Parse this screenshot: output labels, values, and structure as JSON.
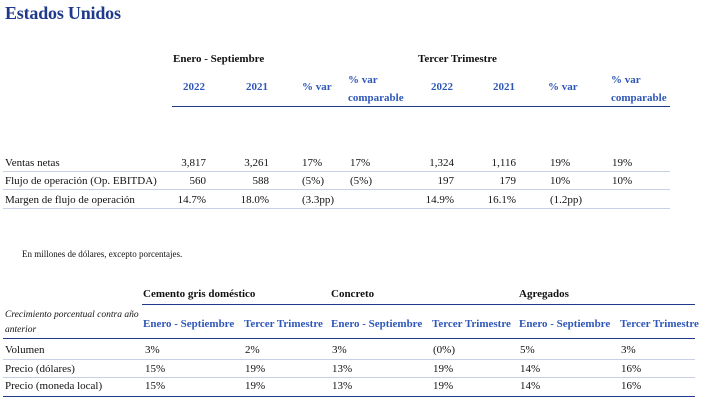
{
  "title": "Estados Unidos",
  "summary": {
    "group_headers": [
      "Enero - Septiembre",
      "Tercer Trimestre"
    ],
    "columns": [
      "2022",
      "2021",
      "% var",
      "% var comparable",
      "2022",
      "2021",
      "% var",
      "% var comparable"
    ],
    "rows": [
      {
        "label": "Ventas netas",
        "values": [
          "3,817",
          "3,261",
          "17%",
          "17%",
          "1,324",
          "1,116",
          "19%",
          "19%"
        ]
      },
      {
        "label": "Flujo de operación (Op. EBITDA)",
        "values": [
          "560",
          "588",
          "(5%)",
          "(5%)",
          "197",
          "179",
          "10%",
          "10%"
        ]
      },
      {
        "label": "Margen de flujo de operación",
        "values": [
          "14.7%",
          "18.0%",
          "(3.3pp)",
          "",
          "14.9%",
          "16.1%",
          "(1.2pp)",
          ""
        ]
      }
    ]
  },
  "note": "En millones de dólares, excepto porcentajes.",
  "growth": {
    "row_header": "Crecimiento porcentual contra año anterior",
    "product_headers": [
      "Cemento gris doméstico",
      "Concreto",
      "Agregados"
    ],
    "period_headers": [
      "Enero - Septiembre",
      "Tercer Trimestre",
      "Enero - Septiembre",
      "Tercer Trimestre",
      "Enero - Septiembre",
      "Tercer Trimestre"
    ],
    "rows": [
      {
        "label": "Volumen",
        "values": [
          "3%",
          "2%",
          "3%",
          "(0%)",
          "5%",
          "3%"
        ]
      },
      {
        "label": "Precio (dólares)",
        "values": [
          "15%",
          "19%",
          "13%",
          "19%",
          "14%",
          "16%"
        ]
      },
      {
        "label": "Precio (moneda local)",
        "values": [
          "15%",
          "19%",
          "13%",
          "19%",
          "14%",
          "16%"
        ]
      }
    ]
  },
  "colors": {
    "title": "#1f3a8a",
    "accent_header": "#2e57b8",
    "rule": "#1f3a8a"
  }
}
